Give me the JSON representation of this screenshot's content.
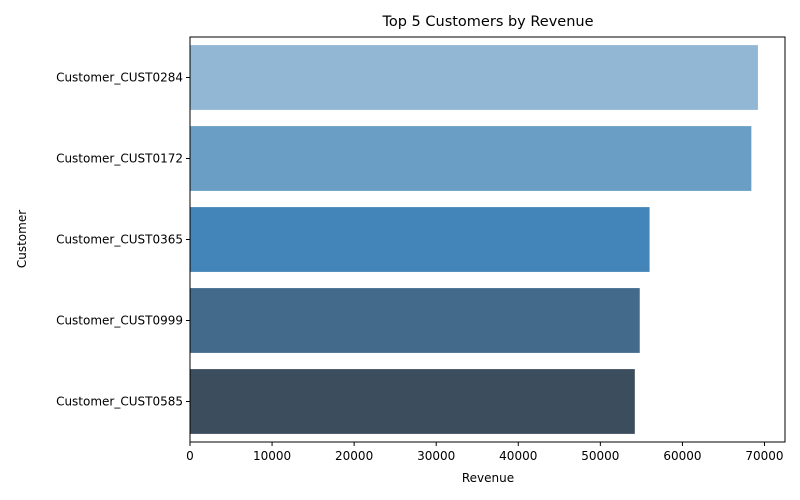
{
  "chart_data": {
    "type": "bar",
    "orientation": "horizontal",
    "title": "Top 5 Customers by Revenue",
    "xlabel": "Revenue",
    "ylabel": "Customer",
    "categories": [
      "Customer_CUST0284",
      "Customer_CUST0172",
      "Customer_CUST0365",
      "Customer_CUST0999",
      "Customer_CUST0585"
    ],
    "values": [
      69200,
      68400,
      56000,
      54800,
      54200
    ],
    "colors": [
      "#92b7d5",
      "#6a9ec5",
      "#4485b9",
      "#436a8b",
      "#3c4e5e"
    ],
    "xlim": [
      0,
      72500
    ],
    "xticks": [
      0,
      10000,
      20000,
      30000,
      40000,
      50000,
      60000,
      70000
    ],
    "xtick_labels": [
      "0",
      "10000",
      "20000",
      "30000",
      "40000",
      "50000",
      "60000",
      "70000"
    ],
    "grid": false,
    "legend": "none"
  }
}
